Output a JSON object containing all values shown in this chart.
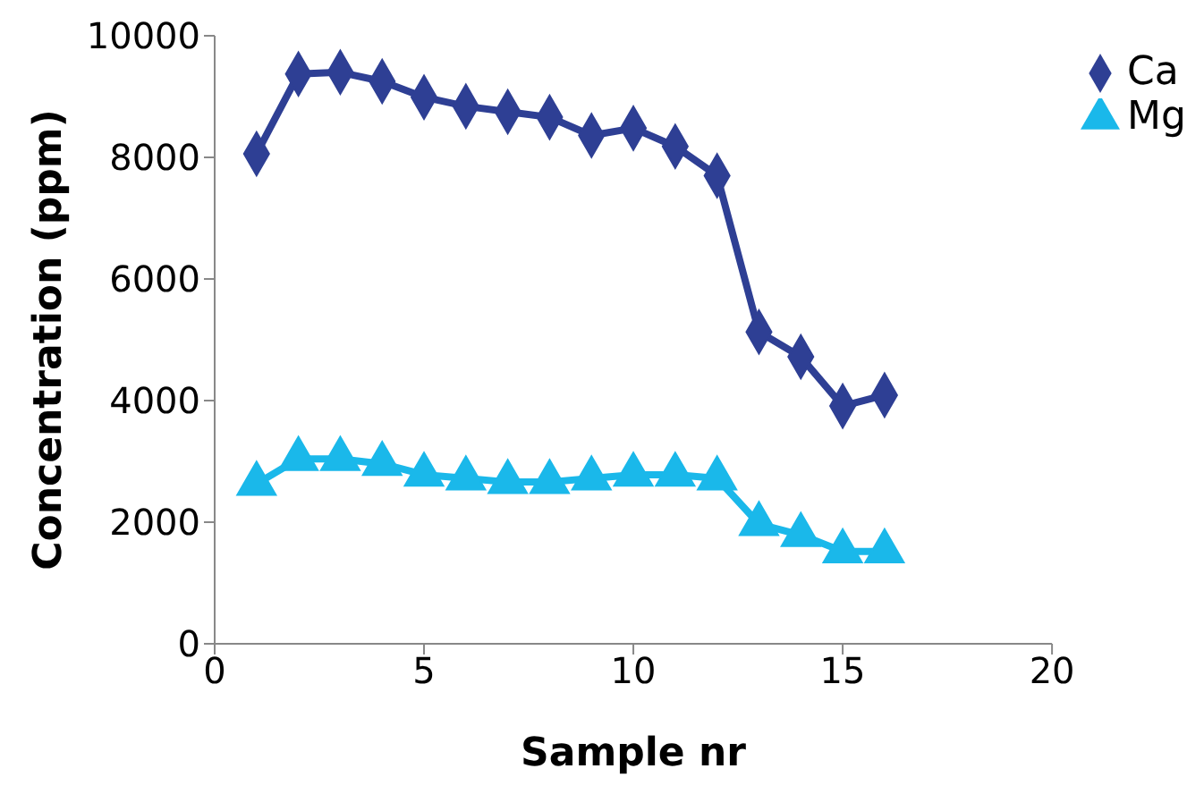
{
  "chart_data": {
    "type": "line",
    "xlabel": "Sample nr",
    "ylabel": "Concentration (ppm)",
    "x": [
      1,
      2,
      3,
      4,
      5,
      6,
      7,
      8,
      9,
      10,
      11,
      12,
      13,
      14,
      15,
      16
    ],
    "xlim": [
      0,
      20
    ],
    "xticks": [
      0,
      5,
      10,
      15,
      20
    ],
    "ylim": [
      0,
      10000
    ],
    "yticks": [
      0,
      2000,
      4000,
      6000,
      8000,
      10000
    ],
    "grid": false,
    "legend": "top right",
    "line_style": "solid",
    "series": [
      {
        "name": "Ca",
        "color": "#2e3f94",
        "marker": "diamond",
        "values": [
          8060,
          9370,
          9400,
          9250,
          8990,
          8840,
          8750,
          8660,
          8360,
          8480,
          8180,
          7700,
          5130,
          4720,
          3910,
          4090
        ]
      },
      {
        "name": "Mg",
        "color": "#1ab8ea",
        "marker": "triangle",
        "values": [
          2630,
          3040,
          3040,
          2960,
          2780,
          2720,
          2660,
          2660,
          2720,
          2780,
          2780,
          2720,
          1970,
          1790,
          1520,
          1520
        ]
      }
    ]
  }
}
